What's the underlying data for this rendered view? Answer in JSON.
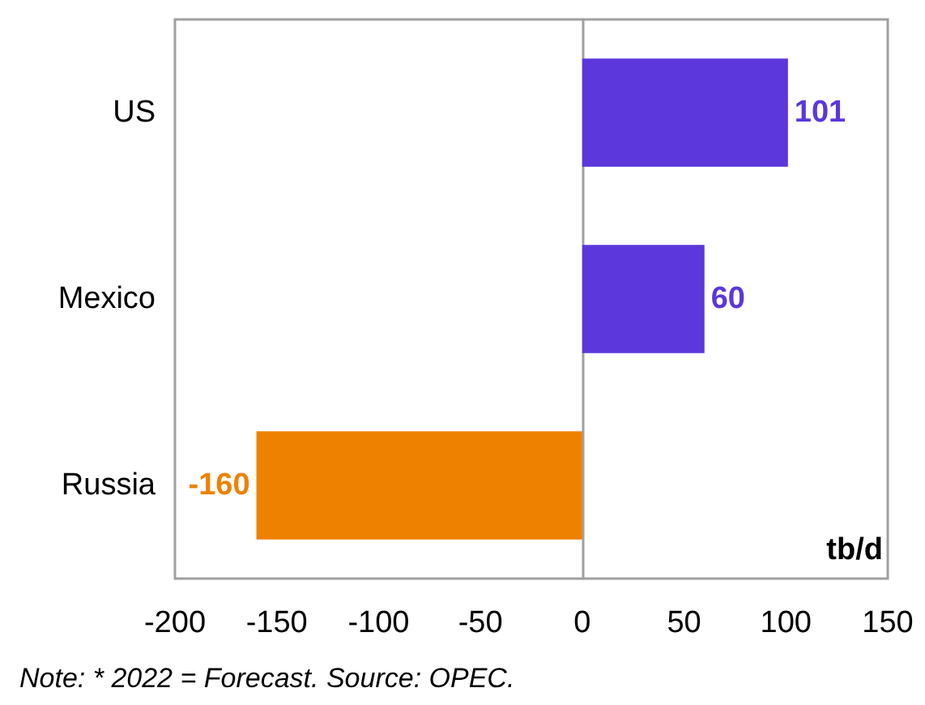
{
  "chart_data": {
    "type": "bar",
    "orientation": "horizontal",
    "categories": [
      "US",
      "Mexico",
      "Russia"
    ],
    "values": [
      101,
      60,
      -160
    ],
    "colors": [
      "#5b37dc",
      "#5b37dc",
      "#ee8100"
    ],
    "xlim": [
      -200,
      150
    ],
    "xticks": [
      -200,
      -150,
      -100,
      -50,
      0,
      50,
      100,
      150
    ],
    "xlabel": "tb/d",
    "data_labels": true,
    "annotations": [
      "Note: * 2022 = Forecast. Source: OPEC."
    ]
  }
}
